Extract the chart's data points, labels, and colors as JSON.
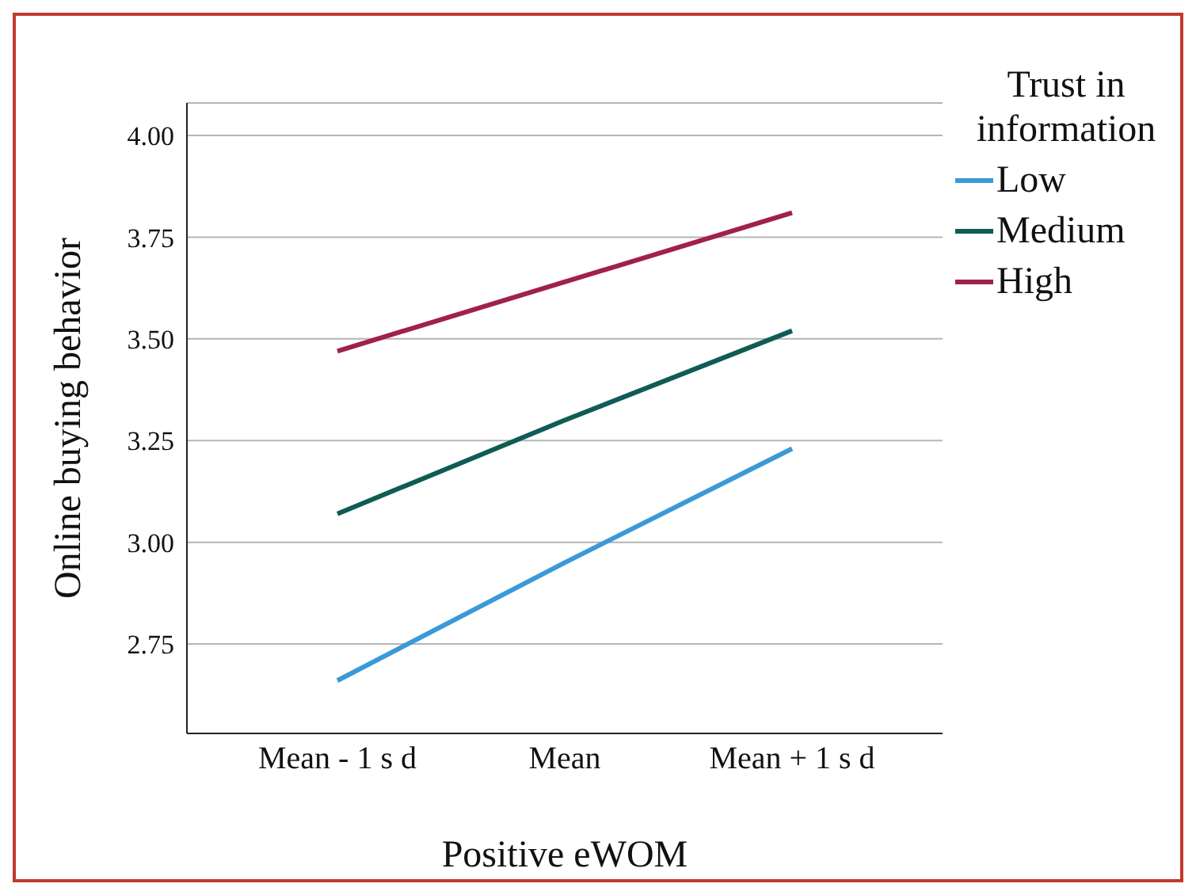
{
  "chart_data": {
    "type": "line",
    "xlabel": "Positive eWOM",
    "ylabel": "Online buying behavior",
    "legend_title": "Trust in information",
    "categories": [
      "Mean - 1 s d",
      "Mean",
      "Mean + 1 s d"
    ],
    "series": [
      {
        "name": "Low",
        "color": "#3a9ad9",
        "values": [
          2.66,
          2.95,
          3.23
        ]
      },
      {
        "name": "Medium",
        "color": "#0f5c55",
        "values": [
          3.07,
          3.3,
          3.52
        ]
      },
      {
        "name": "High",
        "color": "#a0204f",
        "values": [
          3.47,
          3.64,
          3.81
        ]
      }
    ],
    "ylim": [
      2.53,
      4.08
    ],
    "yticks": [
      2.75,
      {
        "value": 3,
        "label": "3.00"
      },
      3.25,
      {
        "value": 3.5,
        "label": "3.50"
      },
      3.75,
      {
        "value": 4,
        "label": "4.00"
      }
    ],
    "grid": "y",
    "legend": "top right",
    "marker": "none",
    "line_style": "solid"
  }
}
